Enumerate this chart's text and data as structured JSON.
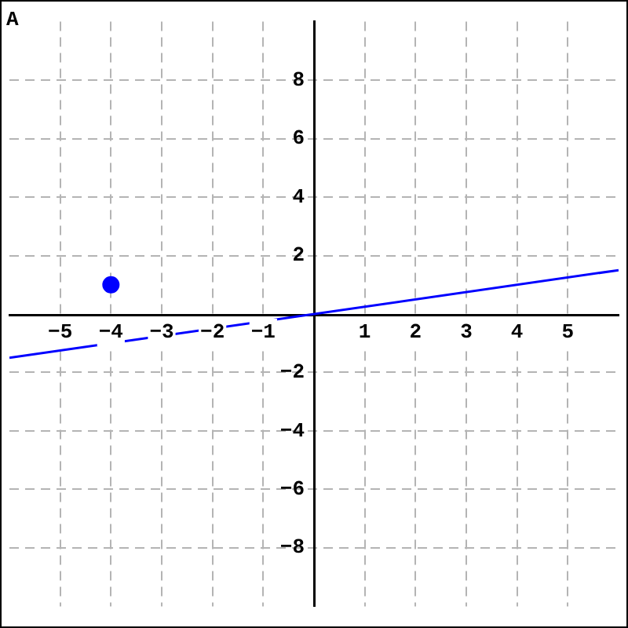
{
  "chart_data": {
    "type": "line",
    "series": [
      {
        "color": "#0000ff",
        "x": [
          -6,
          6
        ],
        "values": [
          -1.5,
          1.5
        ],
        "marker": "none"
      },
      {
        "type": "scatter",
        "color": "#0000ff",
        "x": [
          -4
        ],
        "values": [
          1
        ],
        "marker": "circle"
      }
    ],
    "xlim": [
      -6,
      6
    ],
    "ylim": [
      -10,
      10
    ],
    "xticks": [
      -5,
      -4,
      -3,
      -2,
      -1,
      1,
      2,
      3,
      4,
      5
    ],
    "yticks": [
      -8,
      -6,
      -4,
      -2,
      2,
      4,
      6,
      8
    ],
    "grid": true,
    "legend": false,
    "annotations": [
      "A"
    ]
  }
}
